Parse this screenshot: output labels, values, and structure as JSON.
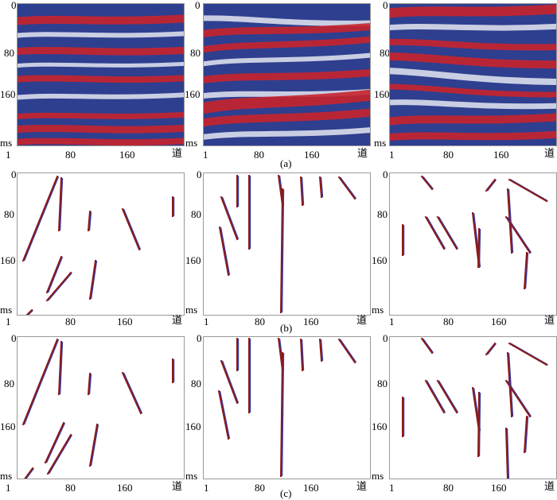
{
  "captions": {
    "a": "(a)",
    "b": "(b)",
    "c": "(c)"
  },
  "axis": {
    "y_ticks": [
      "0",
      "80",
      "160"
    ],
    "y_unit": "ms",
    "x_ticks": [
      "1",
      "80",
      "160"
    ],
    "x_unit": "道"
  },
  "colors": {
    "red": "#c8232c",
    "blue": "#2e3f8f",
    "white": "#ffffff",
    "fault_red": "#8b1a1a",
    "fault_blue": "#3a3aa0",
    "frame": "#999999"
  },
  "rows": [
    {
      "id": "a",
      "kind": "seismic",
      "panels": [
        "seismic-1",
        "seismic-2",
        "seismic-3"
      ]
    },
    {
      "id": "b",
      "kind": "faults",
      "panels": [
        "faults-b1",
        "faults-b2",
        "faults-b3"
      ]
    },
    {
      "id": "c",
      "kind": "faults",
      "panels": [
        "faults-c1",
        "faults-c2",
        "faults-c3"
      ]
    }
  ]
}
